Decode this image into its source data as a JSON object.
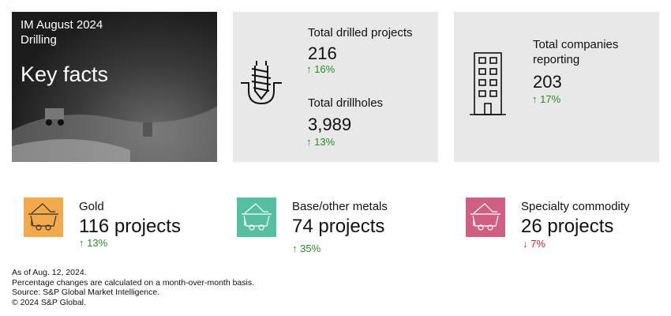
{
  "header": {
    "line1": "IM August 2024",
    "line2": "Drilling",
    "title": "Key facts"
  },
  "drilling": {
    "projects_label": "Total drilled projects",
    "projects_value": "216",
    "projects_change": "↑ 16%",
    "holes_label": "Total drillholes",
    "holes_value": "3,989",
    "holes_change": "↑ 13%",
    "icon": "drill-icon"
  },
  "companies": {
    "label": "Total companies reporting",
    "value": "203",
    "change": "↑ 17%",
    "icon": "building-icon"
  },
  "commodities": [
    {
      "label": "Gold",
      "value": "116 projects",
      "change": "↑ 13%",
      "direction": "up",
      "color": "#f2a94b",
      "icon": "mine-cart-icon"
    },
    {
      "label": "Base/other metals",
      "value": "74 projects",
      "change": "↑ 35%",
      "direction": "up",
      "color": "#56bfa1",
      "icon": "mine-cart-icon"
    },
    {
      "label": "Specialty commodity",
      "value": "26 projects",
      "change": "↓ 7%",
      "direction": "down",
      "color": "#cf6081",
      "icon": "mine-cart-icon"
    }
  ],
  "footnotes": [
    "As of Aug. 12, 2024.",
    "Percentage changes are calculated on a month-over-month basis.",
    "Source: S&P Global Market Intelligence.",
    "© 2024 S&P Global."
  ],
  "colors": {
    "up": "#2a8a2a",
    "down": "#d0213b",
    "panel": "#e8e8e8"
  }
}
